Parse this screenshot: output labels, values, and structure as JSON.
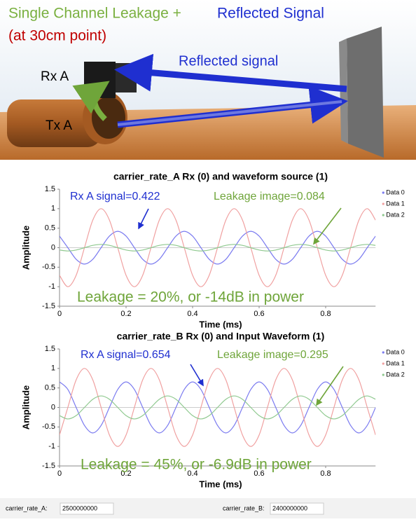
{
  "header": {
    "title_part1": "Single Channel Leakage +",
    "title_part2": "Reflected Signal",
    "subtitle": "(at 30cm point)",
    "reflected_label": "Reflected signal",
    "rx_label": "Rx A",
    "tx_label": "Tx A"
  },
  "chart_data": [
    {
      "type": "line",
      "title": "carrier_rate_A Rx (0) and waveform source (1)",
      "xlabel": "Time (ms)",
      "ylabel": "Amplitude",
      "x": [
        0,
        0.025,
        0.05,
        0.075,
        0.1,
        0.125,
        0.15,
        0.175,
        0.2,
        0.225,
        0.25,
        0.275,
        0.3,
        0.325,
        0.35,
        0.375,
        0.4,
        0.425,
        0.45,
        0.475,
        0.5,
        0.525,
        0.55,
        0.575,
        0.6,
        0.625,
        0.65,
        0.675,
        0.7,
        0.725,
        0.75,
        0.775,
        0.8,
        0.825,
        0.85,
        0.875,
        0.9,
        0.925,
        0.95
      ],
      "series": [
        {
          "name": "Data 0",
          "color": "#7b7bf0",
          "values": [
            0.297,
            0,
            -0.297,
            -0.42,
            -0.297,
            0,
            0.297,
            0.42,
            0.297,
            0,
            -0.297,
            -0.42,
            -0.297,
            0,
            0.297,
            0.42,
            0.297,
            0,
            -0.297,
            -0.42,
            -0.297,
            0,
            0.297,
            0.42,
            0.297,
            0,
            -0.297,
            -0.42,
            -0.297,
            0,
            0.297,
            0.42,
            0.297,
            0,
            -0.297,
            -0.42,
            -0.297,
            0,
            0.297
          ]
        },
        {
          "name": "Data 1",
          "color": "#f0a0a0",
          "values": [
            -0.707,
            -1,
            -0.707,
            0,
            0.707,
            1,
            0.707,
            0,
            -0.707,
            -1,
            -0.707,
            0,
            0.707,
            1,
            0.707,
            0,
            -0.707,
            -1,
            -0.707,
            0,
            0.707,
            1,
            0.707,
            0,
            -0.707,
            -1,
            -0.707,
            0,
            0.707,
            1,
            0.707,
            0,
            -0.707,
            -1,
            -0.707,
            0,
            0.707,
            1,
            0.707
          ]
        },
        {
          "name": "Data 2",
          "color": "#8fc98f",
          "values": [
            -0.059,
            -0.084,
            -0.059,
            0,
            0.059,
            0.084,
            0.059,
            0,
            -0.059,
            -0.084,
            -0.059,
            0,
            0.059,
            0.084,
            0.059,
            0,
            -0.059,
            -0.084,
            -0.059,
            0,
            0.059,
            0.084,
            0.059,
            0,
            -0.059,
            -0.084,
            -0.059,
            0,
            0.059,
            0.084,
            0.059,
            0,
            -0.059,
            -0.084,
            -0.059,
            0,
            0.059,
            0.084,
            0.059
          ]
        }
      ],
      "xlim": [
        0,
        0.95
      ],
      "xticks": [
        0,
        0.2,
        0.4,
        0.6,
        0.8
      ],
      "ylim": [
        -1.5,
        1.5
      ],
      "yticks": [
        -1.5,
        -1,
        -0.5,
        0,
        0.5,
        1,
        1.5
      ],
      "annotations": [
        "Rx A signal=0.422",
        "Leakage image=0.084",
        "Leakage = 20%, or -14dB in power"
      ]
    },
    {
      "type": "line",
      "title": "carrier_rate_B Rx (0) and Input Waveform (1)",
      "xlabel": "Time (ms)",
      "ylabel": "Amplitude",
      "x": [
        0,
        0.025,
        0.05,
        0.075,
        0.1,
        0.125,
        0.15,
        0.175,
        0.2,
        0.225,
        0.25,
        0.275,
        0.3,
        0.325,
        0.35,
        0.375,
        0.4,
        0.425,
        0.45,
        0.475,
        0.5,
        0.525,
        0.55,
        0.575,
        0.6,
        0.625,
        0.65,
        0.675,
        0.7,
        0.725,
        0.75,
        0.775,
        0.8,
        0.825,
        0.85,
        0.875,
        0.9,
        0.925,
        0.95
      ],
      "series": [
        {
          "name": "Data 0",
          "color": "#7b7bf0",
          "values": [
            0.654,
            0.462,
            0,
            -0.462,
            -0.654,
            -0.462,
            0,
            0.462,
            0.654,
            0.462,
            0,
            -0.462,
            -0.654,
            -0.462,
            0,
            0.462,
            0.654,
            0.462,
            0,
            -0.462,
            -0.654,
            -0.462,
            0,
            0.462,
            0.654,
            0.462,
            0,
            -0.462,
            -0.654,
            -0.462,
            0,
            0.462,
            0.654,
            0.462,
            0,
            -0.462,
            -0.654,
            -0.462,
            0
          ]
        },
        {
          "name": "Data 1",
          "color": "#f0a0a0",
          "values": [
            -0.707,
            0,
            0.707,
            1,
            0.707,
            0,
            -0.707,
            -1,
            -0.707,
            0,
            0.707,
            1,
            0.707,
            0,
            -0.707,
            -1,
            -0.707,
            0,
            0.707,
            1,
            0.707,
            0,
            -0.707,
            -1,
            -0.707,
            0,
            0.707,
            1,
            0.707,
            0,
            -0.707,
            -1,
            -0.707,
            0,
            0.707,
            1,
            0.707,
            0,
            -0.707
          ]
        },
        {
          "name": "Data 2",
          "color": "#8fc98f",
          "values": [
            -0.209,
            -0.295,
            -0.209,
            0,
            0.209,
            0.295,
            0.209,
            0,
            -0.209,
            -0.295,
            -0.209,
            0,
            0.209,
            0.295,
            0.209,
            0,
            -0.209,
            -0.295,
            -0.209,
            0,
            0.209,
            0.295,
            0.209,
            0,
            -0.209,
            -0.295,
            -0.209,
            0,
            0.209,
            0.295,
            0.209,
            0,
            -0.209,
            -0.295,
            -0.209,
            0,
            0.209,
            0.295,
            0.209
          ]
        }
      ],
      "xlim": [
        0,
        0.95
      ],
      "xticks": [
        0,
        0.2,
        0.4,
        0.6,
        0.8
      ],
      "ylim": [
        -1.5,
        1.5
      ],
      "yticks": [
        -1.5,
        -1,
        -0.5,
        0,
        0.5,
        1,
        1.5
      ],
      "annotations": [
        "Rx A signal=0.654",
        "Leakage image=0.295",
        "Leakage = 45%, or -6.9dB in power"
      ]
    }
  ],
  "controls": [
    {
      "label": "carrier_rate_A:",
      "value": "2500000000"
    },
    {
      "label": "carrier_rate_B:",
      "value": "2400000000"
    }
  ]
}
